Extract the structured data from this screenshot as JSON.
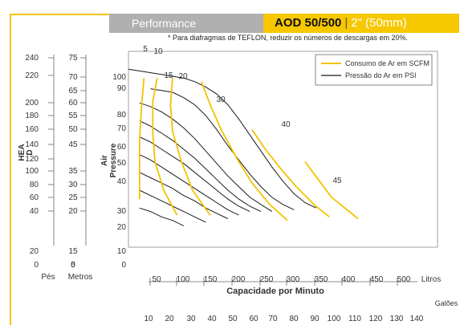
{
  "header": {
    "section": "Performance",
    "model": "AOD 50/500",
    "separator": "|",
    "size": "2\" (50mm)"
  },
  "note": "* Para diafragmas de TEFLON, reduzir os números de descargas em 20%.",
  "colors": {
    "accent": "#f7c800",
    "air": "#f2c300",
    "pressure": "#1a1a1a",
    "header_gray": "#b0b0b0"
  },
  "chart_data": {
    "type": "line",
    "head_axis": {
      "label": "HEA\nD",
      "feet_title": "Pés",
      "meters_title": "Metros",
      "feet_ticks": [
        "240",
        "220",
        "200",
        "180",
        "160",
        "140",
        "120",
        "100",
        "80",
        "60",
        "40",
        "20",
        "0"
      ],
      "meters_ticks": [
        "75",
        "70",
        "65",
        "60",
        "55",
        "50",
        "45",
        "35",
        "30",
        "25",
        "20",
        "15",
        "5",
        "0"
      ]
    },
    "air_pressure": {
      "label": "Air\nPressure",
      "ticks": [
        "100",
        "90",
        "80",
        "70",
        "60",
        "50",
        "40",
        "30",
        "20",
        "10"
      ]
    },
    "x_axis": {
      "title": "Capacidade por Minuto",
      "liters_label": "Litros",
      "liters_ticks": [
        "50",
        "100",
        "150",
        "200",
        "250",
        "300",
        "350",
        "400",
        "450",
        "500"
      ],
      "gallons_label": "Galões",
      "gallons_ticks": [
        "10",
        "20",
        "30",
        "40",
        "50",
        "60",
        "70",
        "80",
        "90",
        "100",
        "110",
        "120",
        "130",
        "140"
      ]
    },
    "legend": {
      "position": "top-right",
      "items": [
        {
          "name": "Consumo de Ar em SCFM",
          "color": "#f2c300"
        },
        {
          "name": "Pressão do Ar em PSI",
          "color": "#1a1a1a"
        }
      ]
    },
    "scfm_labels": [
      "5",
      "10",
      "15",
      "20",
      "30",
      "40",
      "45"
    ],
    "pressure_curves_psi": [
      {
        "psi": 100,
        "points": [
          [
            0,
            100
          ],
          [
            5,
            99
          ],
          [
            10,
            98
          ],
          [
            15,
            97
          ],
          [
            20,
            96
          ],
          [
            25,
            95
          ],
          [
            30,
            93
          ],
          [
            35,
            90
          ],
          [
            40,
            86
          ],
          [
            45,
            80
          ],
          [
            50,
            72
          ],
          [
            55,
            63
          ],
          [
            60,
            54
          ],
          [
            65,
            45
          ],
          [
            70,
            37
          ],
          [
            75,
            30
          ],
          [
            80,
            25
          ],
          [
            85,
            22
          ]
        ]
      },
      {
        "psi": 90,
        "points": [
          [
            10,
            89
          ],
          [
            15,
            88
          ],
          [
            20,
            87
          ],
          [
            25,
            84
          ],
          [
            30,
            80
          ],
          [
            35,
            74
          ],
          [
            40,
            66
          ],
          [
            45,
            57
          ],
          [
            50,
            49
          ],
          [
            55,
            41
          ],
          [
            60,
            34
          ],
          [
            65,
            28
          ],
          [
            70,
            24
          ],
          [
            75,
            21
          ]
        ]
      },
      {
        "psi": 80,
        "points": [
          [
            5,
            81
          ],
          [
            10,
            79
          ],
          [
            15,
            76
          ],
          [
            20,
            72
          ],
          [
            25,
            67
          ],
          [
            30,
            61
          ],
          [
            35,
            54
          ],
          [
            40,
            47
          ],
          [
            45,
            40
          ],
          [
            50,
            34
          ],
          [
            55,
            28
          ],
          [
            60,
            24
          ],
          [
            65,
            20
          ]
        ]
      },
      {
        "psi": 70,
        "points": [
          [
            5,
            71
          ],
          [
            10,
            68
          ],
          [
            15,
            64
          ],
          [
            20,
            60
          ],
          [
            25,
            55
          ],
          [
            30,
            50
          ],
          [
            35,
            44
          ],
          [
            40,
            38
          ],
          [
            45,
            32
          ],
          [
            50,
            27
          ],
          [
            55,
            23
          ],
          [
            60,
            20
          ]
        ]
      },
      {
        "psi": 60,
        "points": [
          [
            5,
            62
          ],
          [
            10,
            59
          ],
          [
            15,
            55
          ],
          [
            20,
            51
          ],
          [
            25,
            47
          ],
          [
            30,
            42
          ],
          [
            35,
            37
          ],
          [
            40,
            32
          ],
          [
            45,
            27
          ],
          [
            50,
            23
          ],
          [
            55,
            20
          ]
        ]
      },
      {
        "psi": 50,
        "points": [
          [
            5,
            52
          ],
          [
            10,
            49
          ],
          [
            15,
            45
          ],
          [
            20,
            41
          ],
          [
            25,
            37
          ],
          [
            30,
            33
          ],
          [
            35,
            29
          ],
          [
            40,
            25
          ],
          [
            45,
            21
          ],
          [
            50,
            18
          ]
        ]
      },
      {
        "psi": 40,
        "points": [
          [
            5,
            42
          ],
          [
            10,
            39
          ],
          [
            15,
            36
          ],
          [
            20,
            33
          ],
          [
            25,
            29
          ],
          [
            30,
            26
          ],
          [
            35,
            22
          ],
          [
            40,
            19
          ],
          [
            45,
            16
          ]
        ]
      },
      {
        "psi": 30,
        "points": [
          [
            5,
            32
          ],
          [
            10,
            29
          ],
          [
            15,
            26
          ],
          [
            20,
            23
          ],
          [
            25,
            20
          ],
          [
            30,
            17
          ],
          [
            35,
            14
          ]
        ]
      },
      {
        "psi": 20,
        "points": [
          [
            5,
            22
          ],
          [
            10,
            20
          ],
          [
            15,
            17
          ],
          [
            20,
            15
          ],
          [
            25,
            12
          ]
        ]
      }
    ],
    "air_consumption_scfm": [
      {
        "scfm": 10,
        "points": [
          [
            7,
            95
          ],
          [
            6,
            80
          ],
          [
            5,
            60
          ],
          [
            5,
            40
          ],
          [
            5,
            27
          ]
        ]
      },
      {
        "scfm": 15,
        "points": [
          [
            13,
            95
          ],
          [
            11,
            82
          ],
          [
            11,
            65
          ],
          [
            12,
            48
          ],
          [
            16,
            32
          ],
          [
            22,
            18
          ]
        ]
      },
      {
        "scfm": 20,
        "points": [
          [
            20,
            95
          ],
          [
            19,
            80
          ],
          [
            20,
            65
          ],
          [
            24,
            48
          ],
          [
            29,
            32
          ],
          [
            37,
            18
          ]
        ]
      },
      {
        "scfm": 30,
        "points": [
          [
            33,
            93
          ],
          [
            37,
            80
          ],
          [
            42,
            66
          ],
          [
            49,
            50
          ],
          [
            56,
            36
          ],
          [
            64,
            24
          ],
          [
            72,
            15
          ]
        ]
      },
      {
        "scfm": 40,
        "points": [
          [
            56,
            66
          ],
          [
            62,
            55
          ],
          [
            69,
            44
          ],
          [
            76,
            34
          ],
          [
            84,
            24
          ],
          [
            91,
            17
          ]
        ]
      },
      {
        "scfm": 45,
        "points": [
          [
            80,
            48
          ],
          [
            86,
            38
          ],
          [
            92,
            28
          ],
          [
            98,
            22
          ],
          [
            104,
            16
          ]
        ]
      }
    ],
    "xlim": [
      0,
      140
    ],
    "ylim": [
      0,
      110
    ]
  }
}
